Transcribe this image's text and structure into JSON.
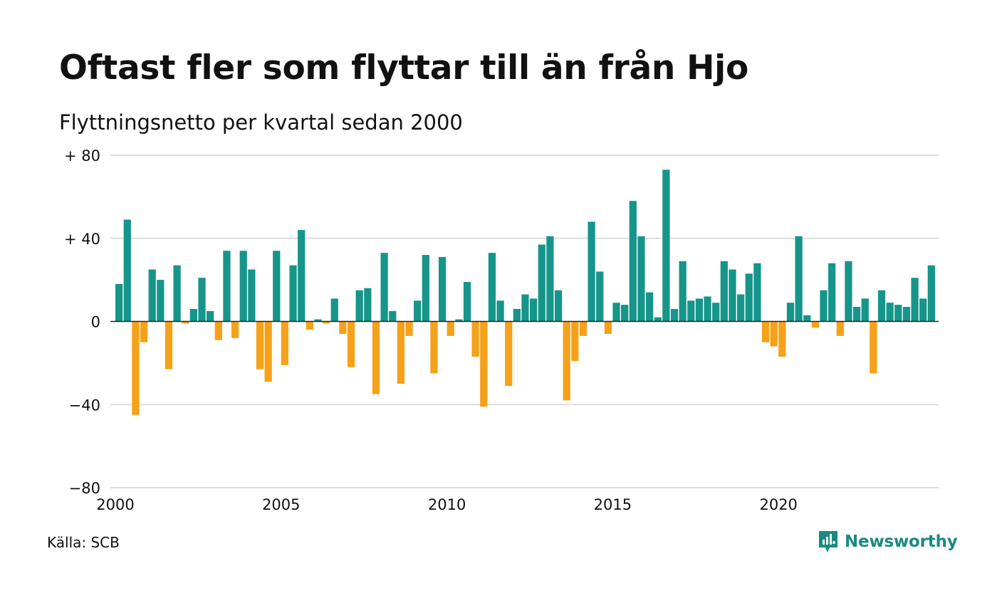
{
  "colors": {
    "positive": "#16958a",
    "negative": "#f5a11a",
    "grid": "#dddddd",
    "axis": "#222222",
    "brand": "#1a8a80"
  },
  "source": "Källa: SCB",
  "brand": {
    "name": "Newsworthy",
    "icon": "newsworthy-logo-icon"
  },
  "chart_data": {
    "type": "bar",
    "title": "Oftast fler som flyttar till än från Hjo",
    "subtitle": "Flyttningsnetto per kvartal sedan 2000",
    "xlabel": "",
    "ylabel": "",
    "ylim": [
      -80,
      80
    ],
    "yticks": [
      {
        "value": 80,
        "label": "+ 80"
      },
      {
        "value": 40,
        "label": "+ 40"
      },
      {
        "value": 0,
        "label": "0"
      },
      {
        "value": -40,
        "label": "−40"
      },
      {
        "value": -80,
        "label": "−80"
      }
    ],
    "xticks": [
      "2000",
      "2005",
      "2010",
      "2015",
      "2020"
    ],
    "grid": true,
    "legend": "none",
    "start": "2000 Q1",
    "frequency": "quarter",
    "values": [
      18,
      49,
      -45,
      -10,
      25,
      20,
      -23,
      27,
      -1,
      6,
      21,
      5,
      -9,
      34,
      -8,
      34,
      25,
      -23,
      -29,
      34,
      -21,
      27,
      44,
      -4,
      1,
      -1,
      11,
      -6,
      -22,
      15,
      16,
      -35,
      33,
      5,
      -30,
      -7,
      10,
      32,
      -25,
      31,
      -7,
      1,
      19,
      -17,
      -41,
      33,
      10,
      -31,
      6,
      13,
      11,
      37,
      41,
      15,
      -38,
      -19,
      -7,
      48,
      24,
      -6,
      9,
      8,
      58,
      41,
      14,
      2,
      73,
      6,
      29,
      10,
      11,
      12,
      9,
      29,
      25,
      13,
      23,
      28,
      -10,
      -12,
      -17,
      9,
      41,
      3,
      -3,
      15,
      28,
      -7,
      29,
      7,
      11,
      -25,
      15,
      9,
      8,
      7,
      21,
      11,
      27
    ]
  }
}
